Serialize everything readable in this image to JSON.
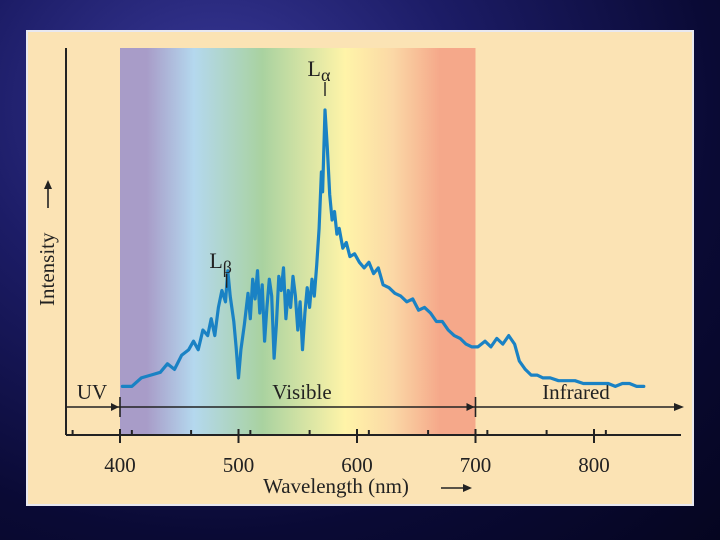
{
  "colors": {
    "background": "#1c1c66",
    "panel": "#fbe3b4",
    "line": "#1a82c4",
    "spectrum": [
      "#a89cc8",
      "#b4d8ee",
      "#a9d2a0",
      "#fff4a8",
      "#fbd8a6",
      "#f5a88a"
    ]
  },
  "chart_data": {
    "type": "line",
    "xlabel": "Wavelength (nm)",
    "ylabel": "Intensity",
    "xlim": [
      355,
      855
    ],
    "ylim": [
      0,
      1
    ],
    "x_ticks": [
      400,
      500,
      600,
      700,
      800
    ],
    "y_ticks": [],
    "grid": false,
    "legend": "none",
    "regions": [
      {
        "label": "UV",
        "from": 355,
        "to": 400
      },
      {
        "label": "Visible",
        "from": 400,
        "to": 700
      },
      {
        "label": "Infrared",
        "from": 700,
        "to": 855
      }
    ],
    "spectrum_bands": [
      {
        "from": 400,
        "to": 445,
        "color": "#a89cc8"
      },
      {
        "from": 445,
        "to": 480,
        "color": "#b4d8ee"
      },
      {
        "from": 480,
        "to": 560,
        "color": "#a9d2a0"
      },
      {
        "from": 560,
        "to": 620,
        "color": "#fff4a8"
      },
      {
        "from": 620,
        "to": 640,
        "color": "#fbd8a6"
      },
      {
        "from": 640,
        "to": 700,
        "color": "#f5a88a"
      }
    ],
    "peaks": [
      {
        "label_main": "L",
        "label_sub": "α",
        "x": 573
      },
      {
        "label_main": "L",
        "label_sub": "β",
        "x": 490
      }
    ],
    "series": [
      {
        "values": [
          [
            402,
            0.02
          ],
          [
            410,
            0.02
          ],
          [
            418,
            0.05
          ],
          [
            426,
            0.06
          ],
          [
            434,
            0.07
          ],
          [
            440,
            0.1
          ],
          [
            446,
            0.08
          ],
          [
            452,
            0.13
          ],
          [
            458,
            0.15
          ],
          [
            462,
            0.18
          ],
          [
            466,
            0.15
          ],
          [
            470,
            0.22
          ],
          [
            474,
            0.2
          ],
          [
            477,
            0.26
          ],
          [
            480,
            0.2
          ],
          [
            483,
            0.3
          ],
          [
            486,
            0.36
          ],
          [
            489,
            0.32
          ],
          [
            491,
            0.43
          ],
          [
            493,
            0.34
          ],
          [
            496,
            0.25
          ],
          [
            498,
            0.16
          ],
          [
            500,
            0.05
          ],
          [
            502,
            0.15
          ],
          [
            505,
            0.24
          ],
          [
            508,
            0.35
          ],
          [
            510,
            0.26
          ],
          [
            512,
            0.4
          ],
          [
            514,
            0.33
          ],
          [
            516,
            0.43
          ],
          [
            518,
            0.28
          ],
          [
            520,
            0.38
          ],
          [
            522,
            0.18
          ],
          [
            524,
            0.3
          ],
          [
            526,
            0.4
          ],
          [
            528,
            0.34
          ],
          [
            530,
            0.12
          ],
          [
            532,
            0.24
          ],
          [
            534,
            0.41
          ],
          [
            536,
            0.36
          ],
          [
            538,
            0.44
          ],
          [
            540,
            0.26
          ],
          [
            542,
            0.36
          ],
          [
            544,
            0.3
          ],
          [
            546,
            0.41
          ],
          [
            548,
            0.34
          ],
          [
            550,
            0.22
          ],
          [
            552,
            0.32
          ],
          [
            554,
            0.15
          ],
          [
            556,
            0.28
          ],
          [
            558,
            0.37
          ],
          [
            560,
            0.3
          ],
          [
            562,
            0.4
          ],
          [
            564,
            0.34
          ],
          [
            566,
            0.45
          ],
          [
            568,
            0.58
          ],
          [
            570,
            0.78
          ],
          [
            571,
            0.71
          ],
          [
            573,
            1.0
          ],
          [
            575,
            0.86
          ],
          [
            577,
            0.7
          ],
          [
            579,
            0.61
          ],
          [
            581,
            0.64
          ],
          [
            583,
            0.56
          ],
          [
            585,
            0.58
          ],
          [
            588,
            0.51
          ],
          [
            591,
            0.53
          ],
          [
            594,
            0.48
          ],
          [
            598,
            0.49
          ],
          [
            602,
            0.46
          ],
          [
            606,
            0.44
          ],
          [
            610,
            0.46
          ],
          [
            614,
            0.42
          ],
          [
            618,
            0.44
          ],
          [
            622,
            0.38
          ],
          [
            627,
            0.37
          ],
          [
            632,
            0.35
          ],
          [
            637,
            0.34
          ],
          [
            642,
            0.32
          ],
          [
            647,
            0.33
          ],
          [
            652,
            0.29
          ],
          [
            657,
            0.3
          ],
          [
            662,
            0.28
          ],
          [
            667,
            0.25
          ],
          [
            672,
            0.25
          ],
          [
            677,
            0.22
          ],
          [
            682,
            0.2
          ],
          [
            687,
            0.19
          ],
          [
            692,
            0.17
          ],
          [
            697,
            0.16
          ],
          [
            702,
            0.16
          ],
          [
            708,
            0.18
          ],
          [
            713,
            0.16
          ],
          [
            718,
            0.19
          ],
          [
            723,
            0.17
          ],
          [
            728,
            0.2
          ],
          [
            733,
            0.17
          ],
          [
            737,
            0.11
          ],
          [
            742,
            0.08
          ],
          [
            747,
            0.06
          ],
          [
            752,
            0.06
          ],
          [
            757,
            0.05
          ],
          [
            763,
            0.05
          ],
          [
            770,
            0.04
          ],
          [
            777,
            0.04
          ],
          [
            784,
            0.04
          ],
          [
            791,
            0.03
          ],
          [
            798,
            0.03
          ],
          [
            805,
            0.03
          ],
          [
            812,
            0.03
          ],
          [
            818,
            0.02
          ],
          [
            824,
            0.03
          ],
          [
            830,
            0.03
          ],
          [
            836,
            0.02
          ],
          [
            842,
            0.02
          ]
        ]
      }
    ]
  }
}
